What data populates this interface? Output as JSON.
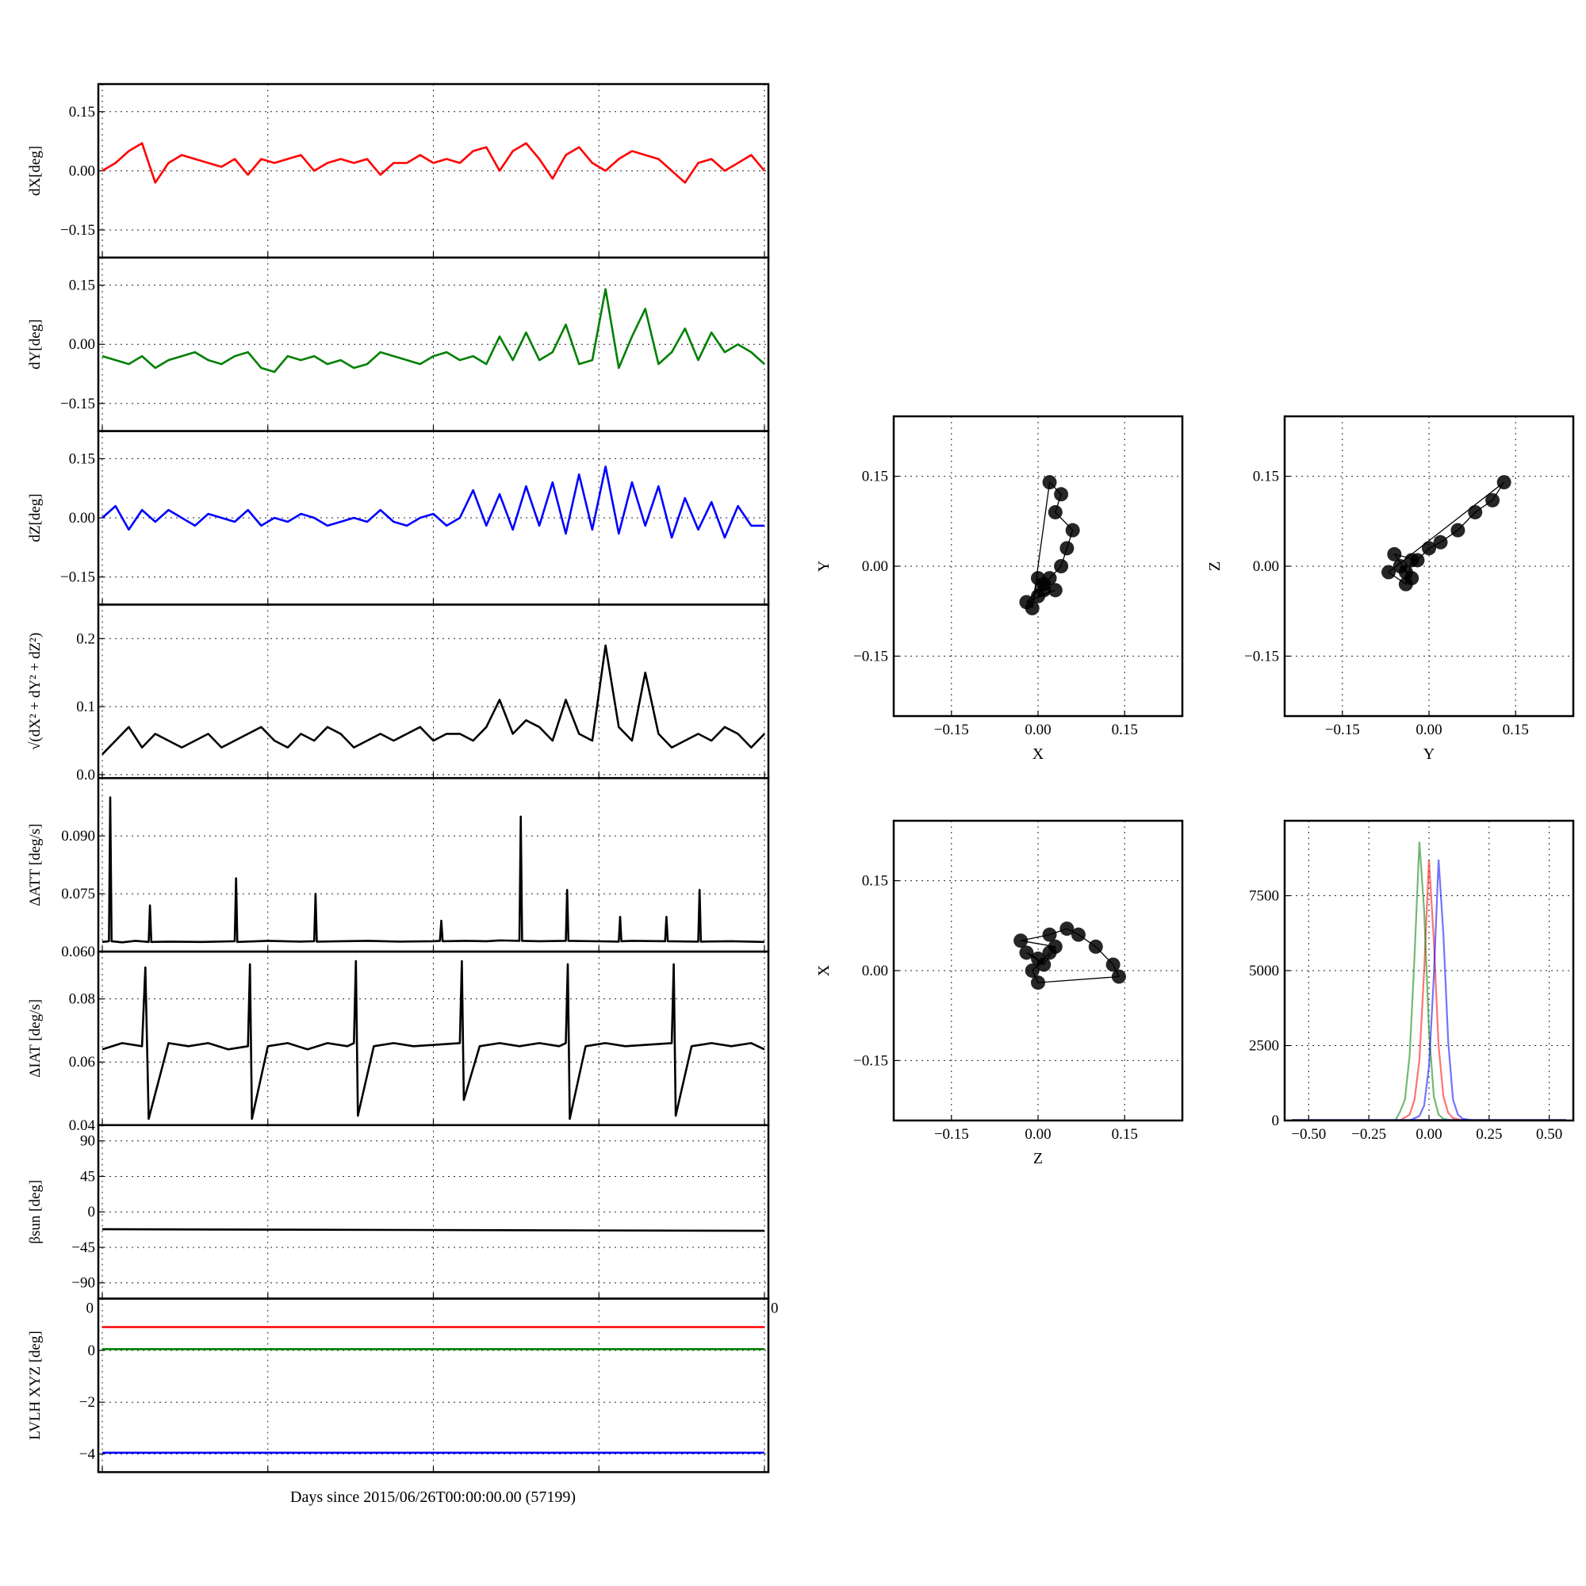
{
  "figure": {
    "xlabel": "Days since 2015/06/26T00:00:00.00 (57199)"
  },
  "chart_data": [
    {
      "type": "line",
      "ylabel": "dX[deg]",
      "ylim": [
        -0.22,
        0.22
      ],
      "yticks": [
        -0.15,
        0.0,
        0.15
      ],
      "ytick_labels": [
        "−0.15",
        "0.00",
        "0.15"
      ],
      "grid": true,
      "series": [
        {
          "color": "#ff0000",
          "x": [
            0,
            2,
            4,
            6,
            8,
            10,
            12,
            14,
            16,
            18,
            20,
            22,
            24,
            26,
            28,
            30,
            32,
            34,
            36,
            38,
            40,
            42,
            44,
            46,
            48,
            50,
            52,
            54,
            56,
            58,
            60,
            62,
            64,
            66,
            68,
            70,
            72,
            74,
            76,
            78,
            80,
            82,
            84,
            86,
            88,
            90,
            92,
            94,
            96,
            98,
            100
          ],
          "y": [
            0.0,
            0.02,
            0.05,
            0.07,
            -0.03,
            0.02,
            0.04,
            0.03,
            0.02,
            0.01,
            0.03,
            -0.01,
            0.03,
            0.02,
            0.03,
            0.04,
            0.0,
            0.02,
            0.03,
            0.02,
            0.03,
            -0.01,
            0.02,
            0.02,
            0.04,
            0.02,
            0.03,
            0.02,
            0.05,
            0.06,
            0.0,
            0.05,
            0.07,
            0.03,
            -0.02,
            0.04,
            0.06,
            0.02,
            0.0,
            0.03,
            0.05,
            0.04,
            0.03,
            0.0,
            -0.03,
            0.02,
            0.03,
            0.0,
            0.02,
            0.04,
            0.0
          ]
        }
      ]
    },
    {
      "type": "line",
      "ylabel": "dY[deg]",
      "ylim": [
        -0.22,
        0.22
      ],
      "yticks": [
        -0.15,
        0.0,
        0.15
      ],
      "ytick_labels": [
        "−0.15",
        "0.00",
        "0.15"
      ],
      "grid": true,
      "series": [
        {
          "color": "#008000",
          "x": [
            0,
            2,
            4,
            6,
            8,
            10,
            12,
            14,
            16,
            18,
            20,
            22,
            24,
            26,
            28,
            30,
            32,
            34,
            36,
            38,
            40,
            42,
            44,
            46,
            48,
            50,
            52,
            54,
            56,
            58,
            60,
            62,
            64,
            66,
            68,
            70,
            72,
            74,
            76,
            78,
            80,
            82,
            84,
            86,
            88,
            90,
            92,
            94,
            96,
            98,
            100
          ],
          "y": [
            -0.03,
            -0.04,
            -0.05,
            -0.03,
            -0.06,
            -0.04,
            -0.03,
            -0.02,
            -0.04,
            -0.05,
            -0.03,
            -0.02,
            -0.06,
            -0.07,
            -0.03,
            -0.04,
            -0.03,
            -0.05,
            -0.04,
            -0.06,
            -0.05,
            -0.02,
            -0.03,
            -0.04,
            -0.05,
            -0.03,
            -0.02,
            -0.04,
            -0.03,
            -0.05,
            0.02,
            -0.04,
            0.03,
            -0.04,
            -0.02,
            0.05,
            -0.05,
            -0.04,
            0.14,
            -0.06,
            0.02,
            0.09,
            -0.05,
            -0.02,
            0.04,
            -0.04,
            0.03,
            -0.02,
            0.0,
            -0.02,
            -0.05
          ]
        }
      ]
    },
    {
      "type": "line",
      "ylabel": "dZ[deg]",
      "ylim": [
        -0.22,
        0.22
      ],
      "yticks": [
        -0.15,
        0.0,
        0.15
      ],
      "ytick_labels": [
        "−0.15",
        "0.00",
        "0.15"
      ],
      "grid": true,
      "series": [
        {
          "color": "#0000ff",
          "x": [
            0,
            2,
            4,
            6,
            8,
            10,
            12,
            14,
            16,
            18,
            20,
            22,
            24,
            26,
            28,
            30,
            32,
            34,
            36,
            38,
            40,
            42,
            44,
            46,
            48,
            50,
            52,
            54,
            56,
            58,
            60,
            62,
            64,
            66,
            68,
            70,
            72,
            74,
            76,
            78,
            80,
            82,
            84,
            86,
            88,
            90,
            92,
            94,
            96,
            98,
            100
          ],
          "y": [
            0.0,
            0.03,
            -0.03,
            0.02,
            -0.01,
            0.02,
            0.0,
            -0.02,
            0.01,
            0.0,
            -0.01,
            0.02,
            -0.02,
            0.0,
            -0.01,
            0.01,
            0.0,
            -0.02,
            -0.01,
            0.0,
            -0.01,
            0.02,
            -0.01,
            -0.02,
            0.0,
            0.01,
            -0.02,
            0.0,
            0.07,
            -0.02,
            0.06,
            -0.03,
            0.08,
            -0.02,
            0.09,
            -0.04,
            0.11,
            -0.03,
            0.13,
            -0.04,
            0.09,
            -0.02,
            0.08,
            -0.05,
            0.05,
            -0.03,
            0.04,
            -0.05,
            0.03,
            -0.02,
            -0.02
          ]
        }
      ]
    },
    {
      "type": "line",
      "ylabel": "√(dX² + dY² + dZ²)",
      "ylim": [
        -0.005,
        0.25
      ],
      "yticks": [
        0.0,
        0.1,
        0.2
      ],
      "ytick_labels": [
        "0.0",
        "0.1",
        "0.2"
      ],
      "grid": true,
      "series": [
        {
          "color": "#000000",
          "x": [
            0,
            2,
            4,
            6,
            8,
            10,
            12,
            14,
            16,
            18,
            20,
            22,
            24,
            26,
            28,
            30,
            32,
            34,
            36,
            38,
            40,
            42,
            44,
            46,
            48,
            50,
            52,
            54,
            56,
            58,
            60,
            62,
            64,
            66,
            68,
            70,
            72,
            74,
            76,
            78,
            80,
            82,
            84,
            86,
            88,
            90,
            92,
            94,
            96,
            98,
            100
          ],
          "y": [
            0.03,
            0.05,
            0.07,
            0.04,
            0.06,
            0.05,
            0.04,
            0.05,
            0.06,
            0.04,
            0.05,
            0.06,
            0.07,
            0.05,
            0.04,
            0.06,
            0.05,
            0.07,
            0.06,
            0.04,
            0.05,
            0.06,
            0.05,
            0.06,
            0.07,
            0.05,
            0.06,
            0.06,
            0.05,
            0.07,
            0.11,
            0.06,
            0.08,
            0.07,
            0.05,
            0.11,
            0.06,
            0.05,
            0.19,
            0.07,
            0.05,
            0.15,
            0.06,
            0.04,
            0.05,
            0.06,
            0.05,
            0.07,
            0.06,
            0.04,
            0.06
          ]
        }
      ]
    },
    {
      "type": "line",
      "ylabel": "ΔATT [deg/s]",
      "ylim": [
        0.06,
        0.105
      ],
      "yticks": [
        0.06,
        0.075,
        0.09
      ],
      "ytick_labels": [
        "0.060",
        "0.075",
        "0.090"
      ],
      "grid": true,
      "series": [
        {
          "color": "#000000",
          "x": [
            0,
            1,
            1.2,
            1.4,
            3,
            5,
            7,
            7.2,
            7.4,
            10,
            15,
            20,
            20.2,
            20.4,
            25,
            30,
            32,
            32.2,
            32.4,
            36,
            40,
            45,
            50,
            51,
            51.2,
            51.4,
            55,
            58,
            60,
            63,
            63.2,
            63.4,
            66,
            70,
            70.2,
            70.4,
            78,
            78.2,
            78.4,
            80,
            85,
            85.2,
            85.4,
            90,
            90.2,
            90.4,
            95,
            100
          ],
          "y": [
            0.0625,
            0.0627,
            0.1,
            0.0627,
            0.0624,
            0.0628,
            0.0625,
            0.072,
            0.0625,
            0.0626,
            0.0625,
            0.0627,
            0.079,
            0.0625,
            0.0628,
            0.0626,
            0.0627,
            0.075,
            0.0626,
            0.0627,
            0.0628,
            0.0626,
            0.0627,
            0.0628,
            0.068,
            0.0627,
            0.0628,
            0.0627,
            0.0629,
            0.0628,
            0.095,
            0.0628,
            0.0627,
            0.0628,
            0.076,
            0.0628,
            0.0626,
            0.069,
            0.0627,
            0.0628,
            0.0627,
            0.069,
            0.0627,
            0.0626,
            0.076,
            0.0626,
            0.0627,
            0.0625
          ]
        }
      ]
    },
    {
      "type": "line",
      "ylabel": "ΔIAT [deg/s]",
      "ylim": [
        0.04,
        0.095
      ],
      "yticks": [
        0.04,
        0.06,
        0.08
      ],
      "ytick_labels": [
        "0.04",
        "0.06",
        "0.08"
      ],
      "grid": true,
      "series": [
        {
          "color": "#000000",
          "x": [
            0,
            3,
            6,
            6.5,
            7,
            10,
            13,
            16,
            19,
            22,
            22.3,
            22.6,
            25,
            28,
            31,
            34,
            37,
            38,
            38.3,
            38.6,
            41,
            44,
            47,
            54,
            54.3,
            54.6,
            57,
            60,
            63,
            66,
            69,
            70,
            70.3,
            70.6,
            73,
            76,
            79,
            86,
            86.3,
            86.6,
            89,
            92,
            95,
            98,
            100
          ],
          "y": [
            0.064,
            0.066,
            0.065,
            0.09,
            0.042,
            0.066,
            0.065,
            0.066,
            0.064,
            0.065,
            0.091,
            0.042,
            0.065,
            0.066,
            0.064,
            0.066,
            0.065,
            0.066,
            0.092,
            0.043,
            0.065,
            0.066,
            0.065,
            0.066,
            0.092,
            0.048,
            0.065,
            0.066,
            0.065,
            0.066,
            0.065,
            0.066,
            0.091,
            0.042,
            0.065,
            0.066,
            0.065,
            0.066,
            0.091,
            0.043,
            0.065,
            0.066,
            0.065,
            0.066,
            0.064
          ]
        }
      ]
    },
    {
      "type": "line",
      "ylabel": "βsun [deg]",
      "ylim": [
        -110,
        110
      ],
      "yticks": [
        -90,
        -45,
        0,
        45,
        90
      ],
      "ytick_labels": [
        "−90",
        "−45",
        "0",
        "45",
        "90"
      ],
      "grid": true,
      "series": [
        {
          "color": "#000000",
          "x": [
            0,
            100
          ],
          "y": [
            -22,
            -24
          ]
        }
      ]
    },
    {
      "type": "line",
      "ylabel": "LVLH XYZ [deg]",
      "ylim": [
        -4.7,
        2.0
      ],
      "yticks": [
        -4,
        -2,
        0
      ],
      "ytick_labels": [
        "−4",
        "−2",
        "0"
      ],
      "corner_label_left": "0",
      "corner_label_right": "0",
      "grid": true,
      "series": [
        {
          "color": "#ff0000",
          "x": [
            0,
            100
          ],
          "y": [
            0.9,
            0.9
          ]
        },
        {
          "color": "#008000",
          "x": [
            0,
            100
          ],
          "y": [
            0.05,
            0.05
          ]
        },
        {
          "color": "#0000ff",
          "x": [
            0,
            100
          ],
          "y": [
            -3.95,
            -3.95
          ]
        }
      ]
    },
    {
      "type": "scatter",
      "xlabel": "X",
      "ylabel": "Y",
      "xlim": [
        -0.25,
        0.25
      ],
      "ylim": [
        -0.25,
        0.25
      ],
      "xticks": [
        -0.15,
        0.0,
        0.15
      ],
      "xtick_labels": [
        "−0.15",
        "0.00",
        "0.15"
      ],
      "yticks": [
        -0.15,
        0.0,
        0.15
      ],
      "ytick_labels": [
        "−0.15",
        "0.00",
        "0.15"
      ],
      "grid": true,
      "series": [
        {
          "color": "#000000",
          "x": [
            0.01,
            0.0,
            0.03,
            -0.02,
            0.02,
            0.04,
            0.05,
            0.06,
            0.03,
            0.04,
            0.02,
            -0.01,
            0.0,
            0.01
          ],
          "y": [
            -0.03,
            -0.05,
            -0.04,
            -0.06,
            -0.02,
            0.0,
            0.03,
            0.06,
            0.09,
            0.12,
            0.14,
            -0.07,
            -0.02,
            -0.04
          ]
        }
      ]
    },
    {
      "type": "scatter",
      "xlabel": "Y",
      "ylabel": "Z",
      "xlim": [
        -0.25,
        0.25
      ],
      "ylim": [
        -0.25,
        0.25
      ],
      "xticks": [
        -0.15,
        0.0,
        0.15
      ],
      "xtick_labels": [
        "−0.15",
        "0.00",
        "0.15"
      ],
      "yticks": [
        -0.15,
        0.0,
        0.15
      ],
      "ytick_labels": [
        "−0.15",
        "0.00",
        "0.15"
      ],
      "grid": true,
      "series": [
        {
          "color": "#000000",
          "x": [
            -0.04,
            -0.05,
            -0.03,
            -0.06,
            -0.02,
            0.0,
            0.02,
            0.05,
            0.08,
            0.11,
            0.13,
            -0.07,
            -0.04,
            -0.03
          ],
          "y": [
            -0.01,
            0.0,
            -0.02,
            0.02,
            0.01,
            0.03,
            0.04,
            0.06,
            0.09,
            0.11,
            0.14,
            -0.01,
            -0.03,
            0.01
          ]
        }
      ]
    },
    {
      "type": "scatter",
      "xlabel": "Z",
      "ylabel": "X",
      "xlim": [
        -0.25,
        0.25
      ],
      "ylim": [
        -0.25,
        0.25
      ],
      "xticks": [
        -0.15,
        0.0,
        0.15
      ],
      "xtick_labels": [
        "−0.15",
        "0.00",
        "0.15"
      ],
      "yticks": [
        -0.15,
        0.0,
        0.15
      ],
      "ytick_labels": [
        "−0.15",
        "0.00",
        "0.15"
      ],
      "grid": true,
      "series": [
        {
          "color": "#000000",
          "x": [
            0.0,
            -0.02,
            0.01,
            0.03,
            -0.03,
            0.02,
            0.05,
            0.07,
            0.1,
            0.13,
            0.14,
            0.0,
            -0.01,
            0.02
          ],
          "y": [
            0.02,
            0.03,
            0.01,
            0.04,
            0.05,
            0.06,
            0.07,
            0.06,
            0.04,
            0.01,
            -0.01,
            -0.02,
            0.0,
            0.03
          ]
        }
      ]
    },
    {
      "type": "histogram",
      "xlim": [
        -0.6,
        0.6
      ],
      "ylim": [
        0,
        10000
      ],
      "xticks": [
        -0.5,
        -0.25,
        0.0,
        0.25,
        0.5
      ],
      "xtick_labels": [
        "−0.50",
        "−0.25",
        "0.00",
        "0.25",
        "0.50"
      ],
      "yticks": [
        0,
        2500,
        5000,
        7500
      ],
      "ytick_labels": [
        "0",
        "2500",
        "5000",
        "7500"
      ],
      "grid": true,
      "series": [
        {
          "color": "#ff0000",
          "x": [
            -0.12,
            -0.08,
            -0.06,
            -0.04,
            -0.02,
            0.0,
            0.02,
            0.04,
            0.06,
            0.08,
            0.1,
            0.14
          ],
          "y": [
            0,
            200,
            700,
            2000,
            5000,
            8700,
            6000,
            2500,
            800,
            250,
            80,
            0
          ]
        },
        {
          "color": "#008000",
          "x": [
            -0.14,
            -0.12,
            -0.1,
            -0.08,
            -0.06,
            -0.04,
            -0.02,
            0.0,
            0.02,
            0.04,
            0.06,
            0.1
          ],
          "y": [
            0,
            300,
            700,
            2200,
            5500,
            9300,
            7000,
            3000,
            800,
            200,
            50,
            0
          ]
        },
        {
          "color": "#0000ff",
          "x": [
            -0.08,
            -0.04,
            -0.02,
            0.0,
            0.02,
            0.04,
            0.06,
            0.08,
            0.1,
            0.12,
            0.14,
            0.18
          ],
          "y": [
            0,
            150,
            500,
            1800,
            4800,
            8700,
            6200,
            2600,
            700,
            200,
            60,
            0
          ]
        }
      ]
    }
  ]
}
